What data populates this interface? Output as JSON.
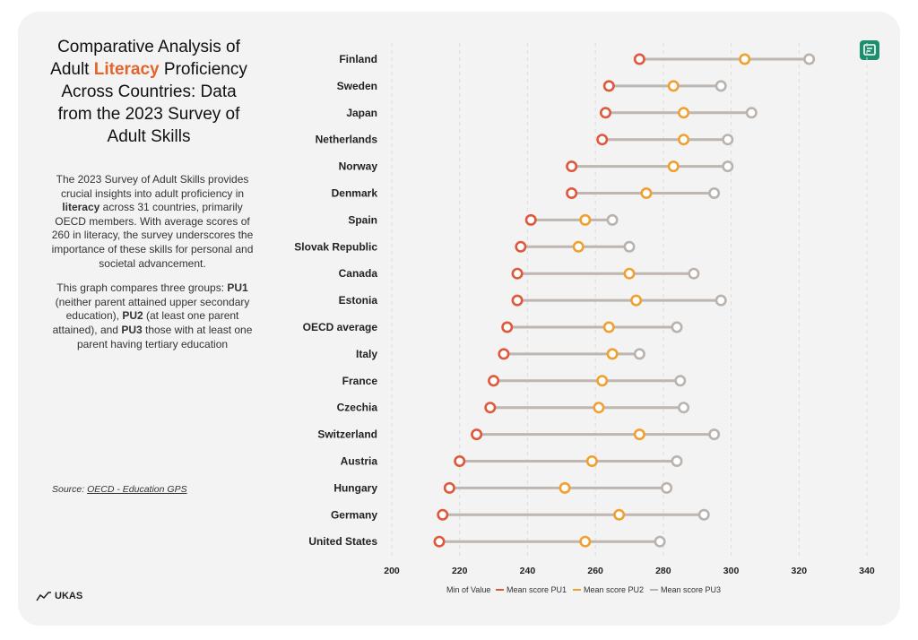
{
  "title": {
    "line1": "Comparative Analysis of",
    "line2_pre": "Adult ",
    "line2_highlight": "Literacy",
    "line2_post": " Proficiency",
    "line3": "Across Countries: Data",
    "line4": "from the 2023 Survey of",
    "line5": "Adult Skills"
  },
  "description": {
    "p1_a": "The 2023 Survey of Adult Skills provides crucial insights into adult proficiency in ",
    "p1_b": "literacy",
    "p1_c": " across 31 countries, primarily OECD members. With average scores of 260 in literacy, the survey underscores the importance of these skills for personal and societal advancement.",
    "p2_a": "This graph compares three groups: ",
    "p2_b": "PU1",
    "p2_c": " (neither parent attained upper secondary education), ",
    "p2_d": "PU2",
    "p2_e": " (at least one parent attained), and ",
    "p2_f": "PU3",
    "p2_g": " those with at least one parent having tertiary education"
  },
  "source": {
    "prefix": "Source: ",
    "link": "OECD - Education GPS"
  },
  "logo": {
    "text": "UKAS"
  },
  "colors": {
    "pu1": "#e0583a",
    "pu2": "#f0a030",
    "pu3": "#b9b2ad",
    "connector": "#bdb6b1",
    "note_button": "#1e8f6e"
  },
  "icons": {
    "note_button": "note-icon",
    "logo": "trend-line-icon"
  },
  "chart_data": {
    "type": "dumbbell",
    "xlim": [
      200,
      340
    ],
    "xticks": [
      "200",
      "220",
      "240",
      "260",
      "280",
      "300",
      "320",
      "340"
    ],
    "legend_title": "Min of Value",
    "series": [
      {
        "name": "Mean score PU1",
        "key": "pu1"
      },
      {
        "name": "Mean score PU2",
        "key": "pu2"
      },
      {
        "name": "Mean score PU3",
        "key": "pu3"
      }
    ],
    "categories": [
      "Finland",
      "Sweden",
      "Japan",
      "Netherlands",
      "Norway",
      "Denmark",
      "Spain",
      "Slovak Republic",
      "Canada",
      "Estonia",
      "OECD average",
      "Italy",
      "France",
      "Czechia",
      "Switzerland",
      "Austria",
      "Hungary",
      "Germany",
      "United States"
    ],
    "pu1": [
      273,
      264,
      263,
      262,
      253,
      253,
      241,
      238,
      237,
      237,
      234,
      233,
      230,
      229,
      225,
      220,
      217,
      215,
      214
    ],
    "pu2": [
      304,
      283,
      286,
      286,
      283,
      275,
      257,
      255,
      270,
      272,
      264,
      265,
      262,
      261,
      273,
      259,
      251,
      267,
      257
    ],
    "pu3": [
      323,
      297,
      306,
      299,
      299,
      295,
      265,
      270,
      289,
      297,
      284,
      273,
      285,
      286,
      295,
      284,
      281,
      292,
      279
    ]
  }
}
